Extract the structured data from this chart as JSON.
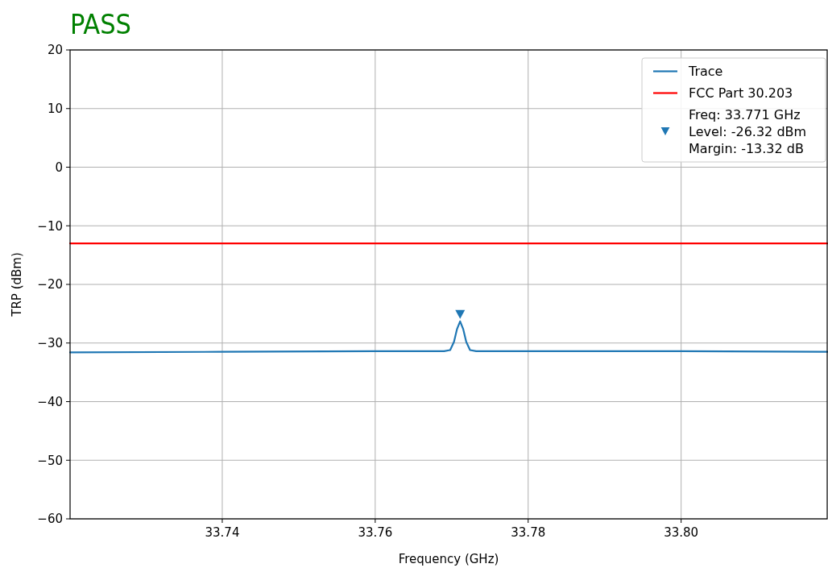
{
  "chart_data": {
    "type": "line",
    "title": "PASS",
    "xlabel": "Frequency (GHz)",
    "ylabel": "TRP (dBm)",
    "xlim": [
      33.7201,
      33.8191
    ],
    "xticks": [
      33.74,
      33.76,
      33.78,
      {
        "value": 33.8,
        "label": "33.80"
      }
    ],
    "ylim": [
      -60,
      20
    ],
    "yticks": [
      {
        "value": -60,
        "label": "−60"
      },
      {
        "value": -50,
        "label": "−50"
      },
      {
        "value": -40,
        "label": "−40"
      },
      {
        "value": -30,
        "label": "−30"
      },
      {
        "value": -20,
        "label": "−20"
      },
      {
        "value": -10,
        "label": "−10"
      },
      0,
      10,
      20
    ],
    "grid": true,
    "legend": "top right",
    "series": [
      {
        "name": "Trace",
        "color": "#1f77b4",
        "x": [
          33.7201,
          33.74,
          33.76,
          33.769,
          33.7698,
          33.7703,
          33.7707,
          33.7711,
          33.7715,
          33.7719,
          33.7724,
          33.7732,
          33.78,
          33.8,
          33.8191
        ],
        "values": [
          -31.6,
          -31.5,
          -31.4,
          -31.4,
          -31.2,
          -29.8,
          -27.6,
          -26.3,
          -27.6,
          -29.8,
          -31.2,
          -31.4,
          -31.4,
          -31.4,
          -31.5
        ]
      },
      {
        "name": "FCC Part 30.203",
        "color": "#ff0000",
        "x": [
          33.7201,
          33.8191
        ],
        "values": [
          -13,
          -13
        ]
      },
      {
        "name": "Freq: 33.771 GHz\nLevel: -26.32 dBm\nMargin: -13.32 dB",
        "type": "scatter",
        "marker": "triangle",
        "color": "#1f77b4",
        "x": [
          33.7711
        ],
        "values": [
          -25.2
        ]
      }
    ]
  }
}
